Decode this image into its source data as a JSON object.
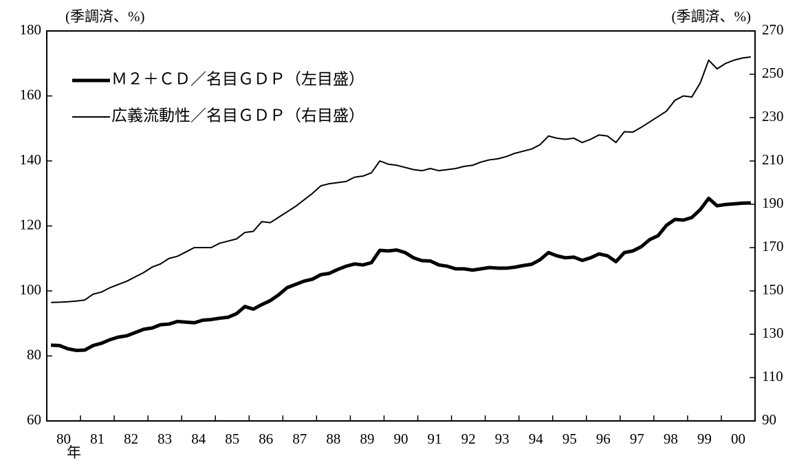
{
  "chart_data": {
    "type": "line",
    "y_unit": "(季調済、%)",
    "y2_unit": "(季調済、%)",
    "x_unit": "年",
    "categories": [
      null,
      "80",
      null,
      null,
      null,
      "81",
      null,
      null,
      null,
      "82",
      null,
      null,
      null,
      "83",
      null,
      null,
      null,
      "84",
      null,
      null,
      null,
      "85",
      null,
      null,
      null,
      "86",
      null,
      null,
      null,
      "87",
      null,
      null,
      null,
      "88",
      null,
      null,
      null,
      "89",
      null,
      null,
      null,
      "90",
      null,
      null,
      null,
      "91",
      null,
      null,
      null,
      "92",
      null,
      null,
      null,
      "93",
      null,
      null,
      null,
      "94",
      null,
      null,
      null,
      "95",
      null,
      null,
      null,
      "96",
      null,
      null,
      null,
      "97",
      null,
      null,
      null,
      "98",
      null,
      null,
      null,
      "99",
      null,
      null,
      null,
      "00",
      null,
      null
    ],
    "series": [
      {
        "name": "Ｍ２＋ＣＤ／名目ＧＤＰ（左目盛）",
        "color": "#000000",
        "width": 5,
        "axis": "y",
        "values": [
          83.3,
          83.2,
          82.2,
          81.7,
          81.8,
          83.2,
          83.9,
          85.0,
          85.8,
          86.2,
          87.2,
          88.2,
          88.6,
          89.6,
          89.8,
          90.6,
          90.4,
          90.2,
          91.0,
          91.2,
          91.6,
          91.9,
          93.0,
          95.2,
          94.4,
          95.8,
          97.0,
          98.8,
          101.0,
          102.0,
          103.0,
          103.6,
          105.0,
          105.4,
          106.6,
          107.6,
          108.3,
          108.0,
          108.7,
          112.5,
          112.3,
          112.6,
          111.8,
          110.2,
          109.3,
          109.2,
          108.0,
          107.6,
          106.8,
          106.8,
          106.4,
          106.8,
          107.2,
          107.0,
          107.0,
          107.3,
          107.8,
          108.2,
          109.6,
          111.8,
          110.8,
          110.2,
          110.4,
          109.4,
          110.2,
          111.4,
          110.8,
          109.0,
          111.8,
          112.3,
          113.6,
          115.8,
          117.0,
          120.2,
          122.0,
          121.8,
          122.6,
          125.0,
          128.5,
          126.2,
          126.6,
          126.8,
          127.0,
          127.1
        ]
      },
      {
        "name": "広義流動性／名目ＧＤＰ（右目盛）",
        "color": "#000000",
        "width": 2,
        "axis": "y2",
        "values": [
          144.7,
          144.8,
          145.0,
          145.3,
          145.8,
          148.5,
          149.5,
          151.5,
          153.0,
          154.5,
          156.5,
          158.5,
          161.0,
          162.5,
          165.0,
          166.0,
          168.0,
          170.0,
          170.0,
          170.0,
          172.0,
          173.0,
          174.0,
          177.0,
          177.5,
          182.0,
          181.5,
          184.0,
          186.5,
          189.0,
          192.0,
          195.0,
          198.5,
          199.5,
          200.0,
          200.5,
          202.5,
          203.0,
          204.5,
          210.0,
          208.5,
          208.0,
          207.0,
          206.0,
          205.5,
          206.5,
          205.5,
          206.0,
          206.5,
          207.5,
          208.0,
          209.5,
          210.5,
          211.0,
          212.0,
          213.5,
          214.5,
          215.5,
          217.5,
          221.5,
          220.5,
          220.0,
          220.5,
          218.5,
          220.0,
          222.0,
          221.5,
          218.5,
          223.5,
          223.3,
          225.5,
          228.0,
          230.5,
          233.0,
          238.0,
          240.0,
          239.5,
          246.0,
          256.5,
          252.5,
          255.0,
          256.5,
          257.5,
          258.0
        ]
      }
    ],
    "ylim": [
      60,
      180
    ],
    "yticks": [
      60,
      80,
      100,
      120,
      140,
      160,
      180
    ],
    "y2lim": [
      90,
      270
    ],
    "y2ticks": [
      90,
      110,
      130,
      150,
      170,
      190,
      210,
      230,
      250,
      270
    ],
    "grid": false
  }
}
